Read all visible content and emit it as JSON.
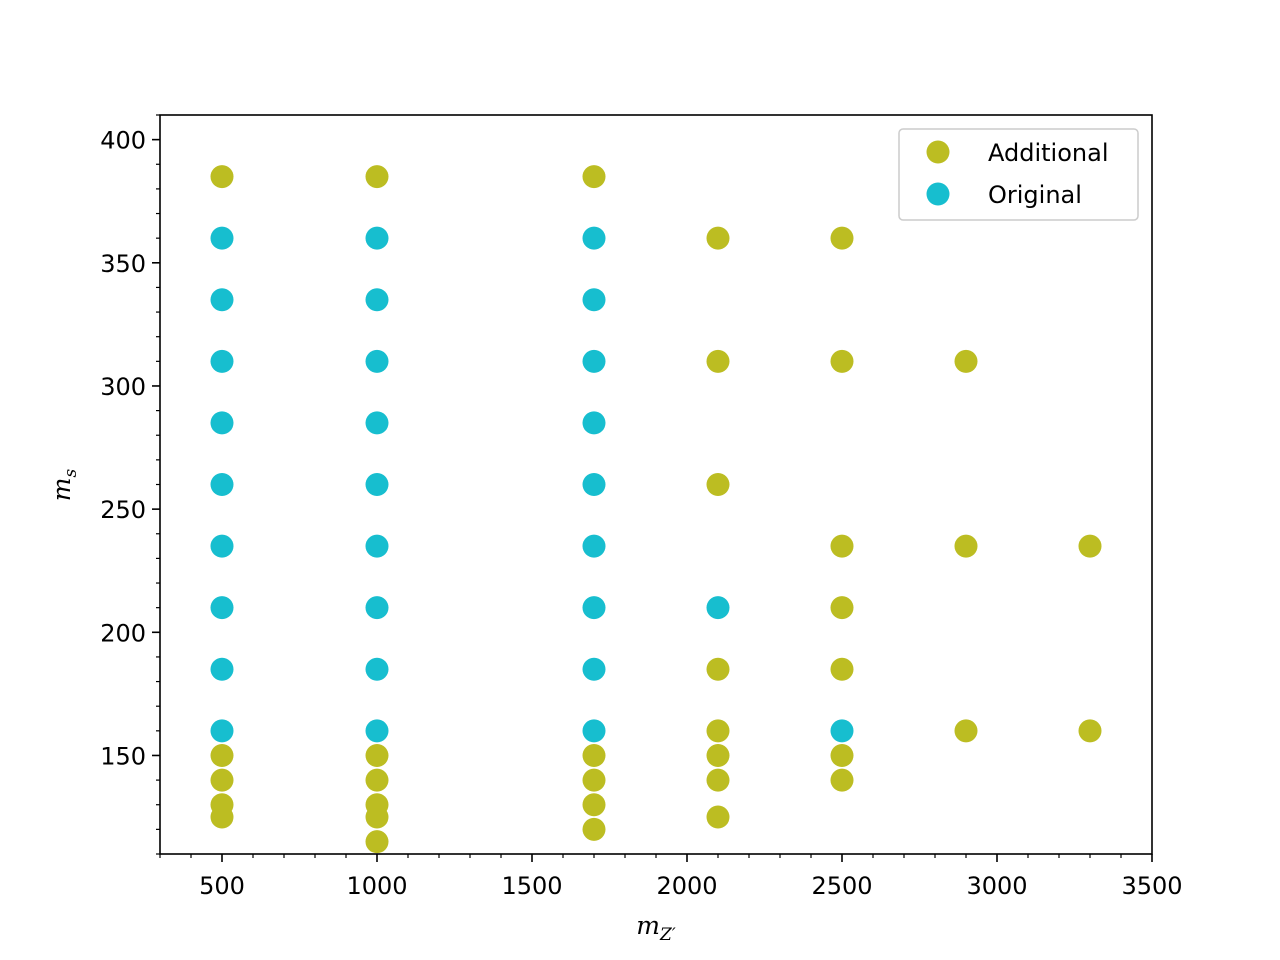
{
  "chart_data": {
    "type": "scatter",
    "title": "",
    "xlabel": {
      "main": "m",
      "sub": "Z′"
    },
    "ylabel": {
      "main": "m",
      "sub": "s"
    },
    "xlim": [
      300,
      3500
    ],
    "ylim": [
      110,
      410
    ],
    "xticks": [
      500,
      1000,
      1500,
      2000,
      2500,
      3000,
      3500
    ],
    "yticks": [
      150,
      200,
      250,
      300,
      350,
      400
    ],
    "grid": false,
    "legend_position": "top-right",
    "series": [
      {
        "name": "Additional",
        "color": "#bcbd22",
        "points": [
          [
            500,
            385
          ],
          [
            500,
            150
          ],
          [
            500,
            140
          ],
          [
            500,
            130
          ],
          [
            500,
            125
          ],
          [
            1000,
            385
          ],
          [
            1000,
            150
          ],
          [
            1000,
            140
          ],
          [
            1000,
            130
          ],
          [
            1000,
            125
          ],
          [
            1000,
            115
          ],
          [
            1700,
            385
          ],
          [
            1700,
            150
          ],
          [
            1700,
            140
          ],
          [
            1700,
            130
          ],
          [
            1700,
            120
          ],
          [
            2100,
            360
          ],
          [
            2100,
            310
          ],
          [
            2100,
            260
          ],
          [
            2100,
            185
          ],
          [
            2100,
            160
          ],
          [
            2100,
            150
          ],
          [
            2100,
            140
          ],
          [
            2100,
            125
          ],
          [
            2500,
            360
          ],
          [
            2500,
            310
          ],
          [
            2500,
            235
          ],
          [
            2500,
            210
          ],
          [
            2500,
            185
          ],
          [
            2500,
            150
          ],
          [
            2500,
            140
          ],
          [
            2900,
            310
          ],
          [
            2900,
            235
          ],
          [
            2900,
            160
          ],
          [
            3300,
            235
          ],
          [
            3300,
            160
          ]
        ]
      },
      {
        "name": "Original",
        "color": "#17becf",
        "points": [
          [
            500,
            360
          ],
          [
            500,
            335
          ],
          [
            500,
            310
          ],
          [
            500,
            285
          ],
          [
            500,
            260
          ],
          [
            500,
            235
          ],
          [
            500,
            210
          ],
          [
            500,
            185
          ],
          [
            500,
            160
          ],
          [
            1000,
            360
          ],
          [
            1000,
            335
          ],
          [
            1000,
            310
          ],
          [
            1000,
            285
          ],
          [
            1000,
            260
          ],
          [
            1000,
            235
          ],
          [
            1000,
            210
          ],
          [
            1000,
            185
          ],
          [
            1000,
            160
          ],
          [
            1700,
            360
          ],
          [
            1700,
            335
          ],
          [
            1700,
            310
          ],
          [
            1700,
            285
          ],
          [
            1700,
            260
          ],
          [
            1700,
            235
          ],
          [
            1700,
            210
          ],
          [
            1700,
            185
          ],
          [
            1700,
            160
          ],
          [
            2100,
            210
          ],
          [
            2500,
            160
          ]
        ]
      }
    ]
  }
}
